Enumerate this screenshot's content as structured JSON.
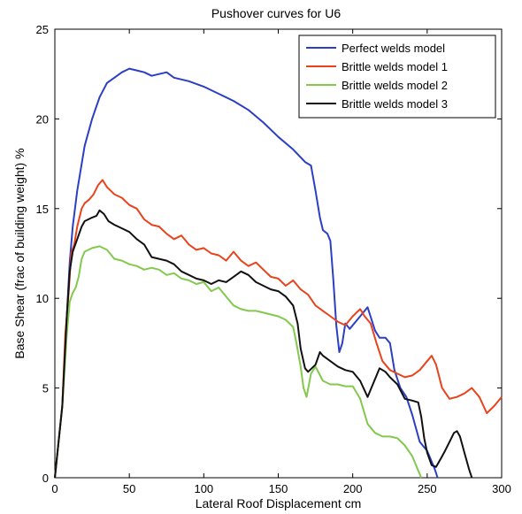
{
  "chart_data": {
    "type": "line",
    "title": "Pushover curves for U6",
    "xlabel": "Lateral Roof Displacement  cm",
    "ylabel": "Base Shear (frac of building weight)  %",
    "xlim": [
      0,
      300
    ],
    "ylim": [
      0,
      25
    ],
    "xticks": [
      "0",
      "50",
      "100",
      "150",
      "200",
      "250",
      "300"
    ],
    "yticks": [
      "0",
      "5",
      "10",
      "15",
      "20",
      "25"
    ],
    "grid": false,
    "legend_position": "top-right",
    "series": [
      {
        "name": "Perfect welds model",
        "color": "#2b3fc4",
        "points": [
          [
            0,
            0
          ],
          [
            5,
            4
          ],
          [
            8,
            9
          ],
          [
            10,
            12
          ],
          [
            12,
            14
          ],
          [
            15,
            16
          ],
          [
            20,
            18.5
          ],
          [
            25,
            20
          ],
          [
            30,
            21.2
          ],
          [
            35,
            22
          ],
          [
            40,
            22.3
          ],
          [
            45,
            22.6
          ],
          [
            50,
            22.8
          ],
          [
            55,
            22.7
          ],
          [
            60,
            22.6
          ],
          [
            65,
            22.4
          ],
          [
            70,
            22.5
          ],
          [
            75,
            22.6
          ],
          [
            80,
            22.3
          ],
          [
            90,
            22.1
          ],
          [
            100,
            21.8
          ],
          [
            110,
            21.4
          ],
          [
            120,
            21
          ],
          [
            130,
            20.5
          ],
          [
            140,
            19.8
          ],
          [
            150,
            19
          ],
          [
            160,
            18.3
          ],
          [
            168,
            17.6
          ],
          [
            172,
            17.4
          ],
          [
            175,
            16
          ],
          [
            178,
            14.5
          ],
          [
            180,
            13.8
          ],
          [
            183,
            13.6
          ],
          [
            185,
            13.2
          ],
          [
            187,
            11
          ],
          [
            189,
            8.5
          ],
          [
            191,
            7
          ],
          [
            193,
            7.5
          ],
          [
            195,
            8.6
          ],
          [
            198,
            8.3
          ],
          [
            200,
            8.5
          ],
          [
            205,
            9
          ],
          [
            210,
            9.5
          ],
          [
            215,
            8.2
          ],
          [
            218,
            7.8
          ],
          [
            222,
            7.8
          ],
          [
            225,
            7.5
          ],
          [
            228,
            6
          ],
          [
            232,
            5
          ],
          [
            236,
            4.5
          ],
          [
            240,
            3.5
          ],
          [
            245,
            2
          ],
          [
            250,
            1.5
          ],
          [
            255,
            0.5
          ],
          [
            257,
            0
          ]
        ]
      },
      {
        "name": "Brittle welds model 1",
        "color": "#e8431c",
        "points": [
          [
            0,
            0
          ],
          [
            5,
            4
          ],
          [
            7,
            8
          ],
          [
            9,
            10
          ],
          [
            11,
            12.5
          ],
          [
            13,
            13
          ],
          [
            15,
            14
          ],
          [
            18,
            15
          ],
          [
            20,
            15.3
          ],
          [
            23,
            15.5
          ],
          [
            26,
            15.8
          ],
          [
            29,
            16.3
          ],
          [
            32,
            16.6
          ],
          [
            35,
            16.2
          ],
          [
            40,
            15.8
          ],
          [
            45,
            15.6
          ],
          [
            50,
            15.2
          ],
          [
            55,
            15
          ],
          [
            60,
            14.4
          ],
          [
            65,
            14.1
          ],
          [
            70,
            14
          ],
          [
            75,
            13.6
          ],
          [
            80,
            13.3
          ],
          [
            85,
            13.5
          ],
          [
            90,
            13
          ],
          [
            95,
            12.7
          ],
          [
            100,
            12.8
          ],
          [
            105,
            12.5
          ],
          [
            110,
            12.4
          ],
          [
            115,
            12.1
          ],
          [
            120,
            12.6
          ],
          [
            125,
            12.1
          ],
          [
            130,
            11.8
          ],
          [
            135,
            12
          ],
          [
            140,
            11.6
          ],
          [
            145,
            11.2
          ],
          [
            150,
            11.1
          ],
          [
            155,
            10.7
          ],
          [
            160,
            11
          ],
          [
            165,
            10.5
          ],
          [
            170,
            10.2
          ],
          [
            175,
            9.6
          ],
          [
            180,
            9.3
          ],
          [
            185,
            9
          ],
          [
            190,
            8.7
          ],
          [
            195,
            8.5
          ],
          [
            200,
            9
          ],
          [
            205,
            9.4
          ],
          [
            208,
            9
          ],
          [
            212,
            8.6
          ],
          [
            216,
            7.5
          ],
          [
            220,
            6.5
          ],
          [
            225,
            6
          ],
          [
            230,
            5.8
          ],
          [
            235,
            5.6
          ],
          [
            240,
            5.7
          ],
          [
            245,
            6
          ],
          [
            250,
            6.5
          ],
          [
            253,
            6.8
          ],
          [
            256,
            6.3
          ],
          [
            260,
            5
          ],
          [
            265,
            4.4
          ],
          [
            270,
            4.5
          ],
          [
            275,
            4.7
          ],
          [
            280,
            5
          ],
          [
            285,
            4.5
          ],
          [
            290,
            3.6
          ],
          [
            295,
            4
          ],
          [
            300,
            4.5
          ]
        ]
      },
      {
        "name": "Brittle welds model 2",
        "color": "#82c94e",
        "points": [
          [
            0,
            0
          ],
          [
            5,
            4
          ],
          [
            8,
            8
          ],
          [
            10,
            9.8
          ],
          [
            12,
            10.3
          ],
          [
            14,
            10.6
          ],
          [
            16,
            11.2
          ],
          [
            18,
            12.2
          ],
          [
            20,
            12.6
          ],
          [
            25,
            12.8
          ],
          [
            30,
            12.9
          ],
          [
            35,
            12.7
          ],
          [
            40,
            12.2
          ],
          [
            45,
            12.1
          ],
          [
            50,
            11.9
          ],
          [
            55,
            11.8
          ],
          [
            60,
            11.6
          ],
          [
            65,
            11.7
          ],
          [
            70,
            11.6
          ],
          [
            75,
            11.3
          ],
          [
            80,
            11.4
          ],
          [
            85,
            11.1
          ],
          [
            90,
            11
          ],
          [
            95,
            10.8
          ],
          [
            100,
            10.9
          ],
          [
            105,
            10.4
          ],
          [
            110,
            10.6
          ],
          [
            115,
            10.1
          ],
          [
            120,
            9.6
          ],
          [
            125,
            9.4
          ],
          [
            130,
            9.3
          ],
          [
            135,
            9.3
          ],
          [
            140,
            9.2
          ],
          [
            145,
            9.1
          ],
          [
            150,
            9
          ],
          [
            155,
            8.8
          ],
          [
            160,
            8.4
          ],
          [
            162,
            7.6
          ],
          [
            165,
            6.2
          ],
          [
            167,
            5
          ],
          [
            169,
            4.5
          ],
          [
            172,
            5.8
          ],
          [
            175,
            6.2
          ],
          [
            180,
            5.4
          ],
          [
            185,
            5.2
          ],
          [
            190,
            5.2
          ],
          [
            195,
            5.1
          ],
          [
            200,
            5.1
          ],
          [
            205,
            4.4
          ],
          [
            210,
            3
          ],
          [
            215,
            2.5
          ],
          [
            220,
            2.3
          ],
          [
            225,
            2.3
          ],
          [
            230,
            2.2
          ],
          [
            235,
            1.8
          ],
          [
            240,
            1.2
          ],
          [
            244,
            0.4
          ],
          [
            246,
            0
          ]
        ]
      },
      {
        "name": "Brittle welds model 3",
        "color": "#111111",
        "points": [
          [
            0,
            0
          ],
          [
            5,
            4
          ],
          [
            8,
            9
          ],
          [
            10,
            11.5
          ],
          [
            12,
            12.6
          ],
          [
            15,
            13.3
          ],
          [
            18,
            14
          ],
          [
            20,
            14.3
          ],
          [
            25,
            14.5
          ],
          [
            28,
            14.6
          ],
          [
            30,
            14.9
          ],
          [
            33,
            14.7
          ],
          [
            36,
            14.3
          ],
          [
            40,
            14.1
          ],
          [
            45,
            13.9
          ],
          [
            50,
            13.7
          ],
          [
            55,
            13.3
          ],
          [
            60,
            13
          ],
          [
            65,
            12.3
          ],
          [
            70,
            12.2
          ],
          [
            75,
            12.1
          ],
          [
            80,
            11.9
          ],
          [
            85,
            11.5
          ],
          [
            90,
            11.3
          ],
          [
            95,
            11.1
          ],
          [
            100,
            11
          ],
          [
            105,
            10.8
          ],
          [
            110,
            11
          ],
          [
            115,
            10.9
          ],
          [
            120,
            11.2
          ],
          [
            125,
            11.5
          ],
          [
            130,
            11.3
          ],
          [
            135,
            10.9
          ],
          [
            140,
            10.7
          ],
          [
            145,
            10.5
          ],
          [
            150,
            10.4
          ],
          [
            155,
            10.1
          ],
          [
            160,
            9.6
          ],
          [
            163,
            8.6
          ],
          [
            165,
            7.2
          ],
          [
            168,
            6.1
          ],
          [
            170,
            5.9
          ],
          [
            175,
            6.3
          ],
          [
            178,
            7
          ],
          [
            180,
            6.8
          ],
          [
            185,
            6.5
          ],
          [
            190,
            6.2
          ],
          [
            195,
            6
          ],
          [
            200,
            5.9
          ],
          [
            205,
            5.4
          ],
          [
            210,
            4.5
          ],
          [
            215,
            5.5
          ],
          [
            218,
            6.1
          ],
          [
            222,
            5.9
          ],
          [
            225,
            5.6
          ],
          [
            230,
            5.2
          ],
          [
            235,
            4.4
          ],
          [
            240,
            4.3
          ],
          [
            244,
            4.2
          ],
          [
            246,
            3.4
          ],
          [
            248,
            2.2
          ],
          [
            250,
            1.4
          ],
          [
            253,
            0.7
          ],
          [
            256,
            0.6
          ],
          [
            260,
            1.2
          ],
          [
            262,
            1.5
          ],
          [
            265,
            2
          ],
          [
            268,
            2.5
          ],
          [
            270,
            2.6
          ],
          [
            272,
            2.3
          ],
          [
            275,
            1.4
          ],
          [
            278,
            0.5
          ],
          [
            280,
            0
          ]
        ]
      }
    ]
  }
}
